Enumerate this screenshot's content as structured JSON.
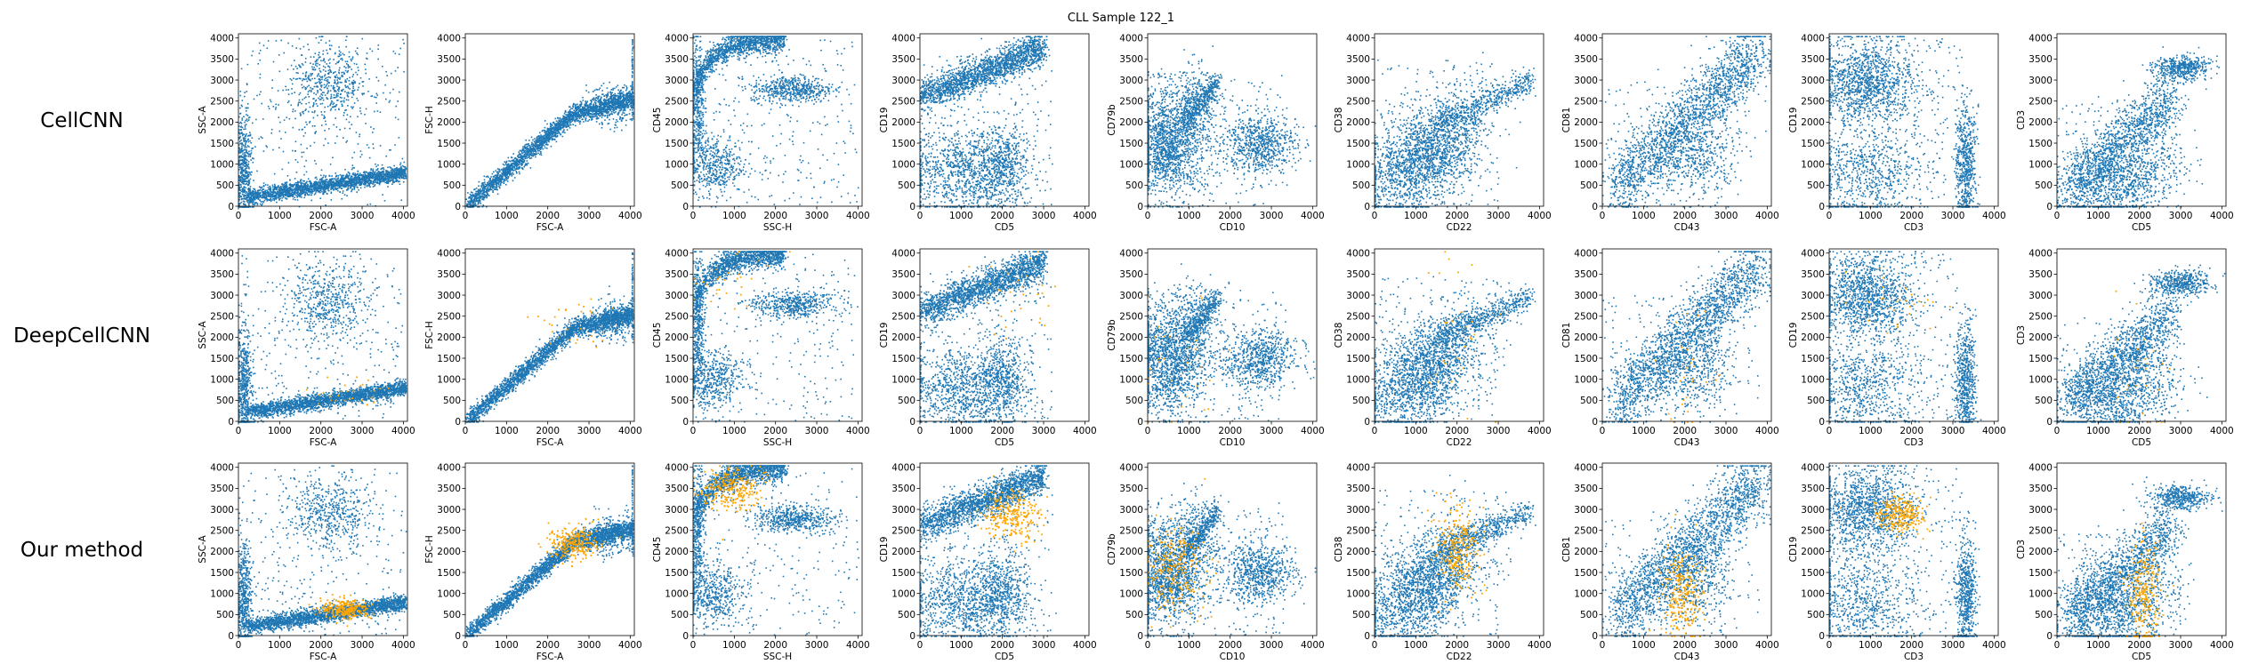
{
  "title": "CLL Sample 122_1",
  "colors": {
    "population": "#1f77b4",
    "highlight": "#ffa500"
  },
  "chart_data": {
    "type": "scatter",
    "grid": false,
    "rows": [
      {
        "label": "CellCNN",
        "highlight": "none"
      },
      {
        "label": "DeepCellCNN",
        "highlight": "sparse"
      },
      {
        "label": "Our method",
        "highlight": "dense"
      }
    ],
    "panels": [
      {
        "xlabel": "FSC-A",
        "ylabel": "SSC-A",
        "pattern": "scatter-side"
      },
      {
        "xlabel": "FSC-A",
        "ylabel": "FSC-H",
        "pattern": "diagonal"
      },
      {
        "xlabel": "SSC-H",
        "ylabel": "CD45",
        "pattern": "cd45-ssc"
      },
      {
        "xlabel": "CD5",
        "ylabel": "CD19",
        "pattern": "cd19-cd5"
      },
      {
        "xlabel": "CD10",
        "ylabel": "CD79b",
        "pattern": "cd79b-cd10"
      },
      {
        "xlabel": "CD22",
        "ylabel": "CD38",
        "pattern": "cd38-cd22"
      },
      {
        "xlabel": "CD43",
        "ylabel": "CD81",
        "pattern": "cd81-cd43"
      },
      {
        "xlabel": "CD3",
        "ylabel": "CD19",
        "pattern": "cd19-cd3"
      },
      {
        "xlabel": "CD5",
        "ylabel": "CD3",
        "pattern": "cd3-cd5"
      }
    ],
    "xlim": [
      0,
      4100
    ],
    "ylim": [
      0,
      4100
    ],
    "xticks": [
      "0",
      "1000",
      "2000",
      "3000",
      "4000"
    ],
    "yticks": [
      "0",
      "500",
      "1000",
      "1500",
      "2000",
      "2500",
      "3000",
      "3500",
      "4000"
    ]
  }
}
